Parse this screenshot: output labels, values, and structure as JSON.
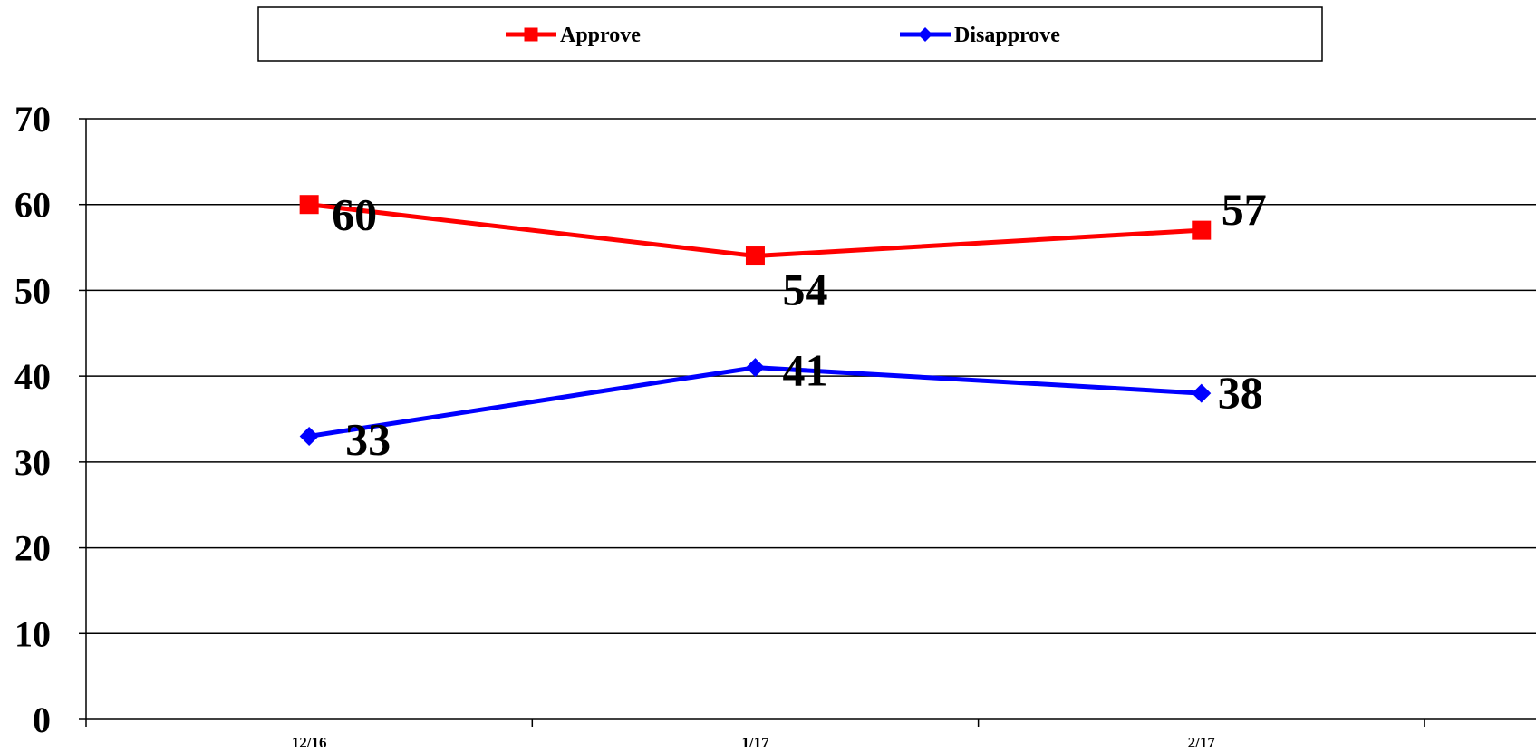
{
  "chart_data": {
    "type": "line",
    "title": "",
    "xlabel": "",
    "ylabel": "",
    "categories": [
      "12/16",
      "1/17",
      "2/17"
    ],
    "ylim": [
      0,
      70
    ],
    "yticks": [
      0,
      10,
      20,
      30,
      40,
      50,
      60,
      70
    ],
    "grid": true,
    "legend_position": "top",
    "series": [
      {
        "name": "Approve",
        "values": [
          60,
          54,
          57
        ],
        "color": "#ff0000",
        "marker": "square"
      },
      {
        "name": "Disapprove",
        "values": [
          33,
          41,
          38
        ],
        "color": "#0000ff",
        "marker": "diamond"
      }
    ]
  }
}
